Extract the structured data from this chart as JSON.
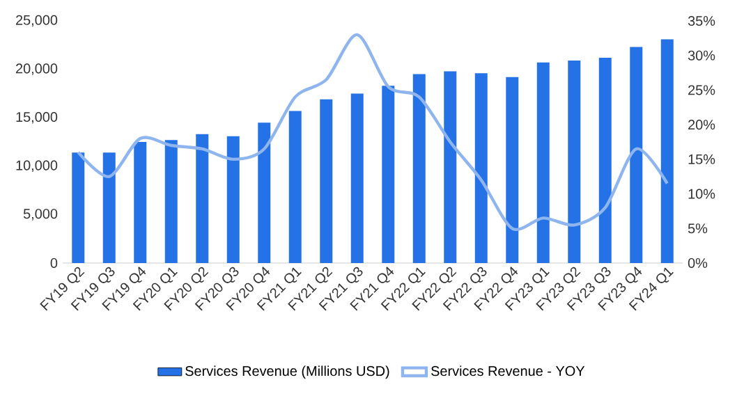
{
  "chart_data": {
    "type": "bar",
    "categories": [
      "FY19 Q2",
      "FY19 Q3",
      "FY19 Q4",
      "FY20 Q1",
      "FY20 Q2",
      "FY20 Q3",
      "FY20 Q4",
      "FY21 Q1",
      "FY21 Q2",
      "FY21 Q3",
      "FY21 Q4",
      "FY22 Q1",
      "FY22 Q2",
      "FY22 Q3",
      "FY22 Q4",
      "FY23 Q1",
      "FY23 Q2",
      "FY23 Q3",
      "FY23 Q4",
      "FY24 Q1"
    ],
    "series": [
      {
        "name": "Services Revenue (Millions USD)",
        "color": "#2572e6",
        "values": [
          11400,
          11400,
          12500,
          12700,
          13300,
          13100,
          14500,
          15700,
          16900,
          17500,
          18300,
          19500,
          19800,
          19600,
          19200,
          20700,
          20900,
          21200,
          22300,
          23100
        ]
      },
      {
        "name": "Services Revenue - YOY",
        "type": "line",
        "axis": "y2",
        "color": "#8fb5ef",
        "values": [
          16,
          12.5,
          18,
          17,
          16.5,
          15,
          16.5,
          24,
          26.5,
          33,
          25.5,
          24,
          17.5,
          12,
          5,
          6.5,
          5.5,
          8,
          16.5,
          11.5
        ]
      }
    ],
    "ylim": [
      0,
      25000
    ],
    "yticks": [
      {
        "value": 0,
        "label": "0"
      },
      {
        "value": 5000,
        "label": "5,000"
      },
      {
        "value": 10000,
        "label": "10,000"
      },
      {
        "value": 15000,
        "label": "15,000"
      },
      {
        "value": 20000,
        "label": "20,000"
      },
      {
        "value": 25000,
        "label": "25,000"
      }
    ],
    "y2lim": [
      0,
      35
    ],
    "y2ticks": [
      {
        "value": 0,
        "label": "0%"
      },
      {
        "value": 5,
        "label": "5%"
      },
      {
        "value": 10,
        "label": "10%"
      },
      {
        "value": 15,
        "label": "15%"
      },
      {
        "value": 20,
        "label": "20%"
      },
      {
        "value": 25,
        "label": "25%"
      },
      {
        "value": 30,
        "label": "30%"
      },
      {
        "value": 35,
        "label": "35%"
      }
    ],
    "legend": "bottom",
    "grid": false,
    "marker": "none"
  }
}
